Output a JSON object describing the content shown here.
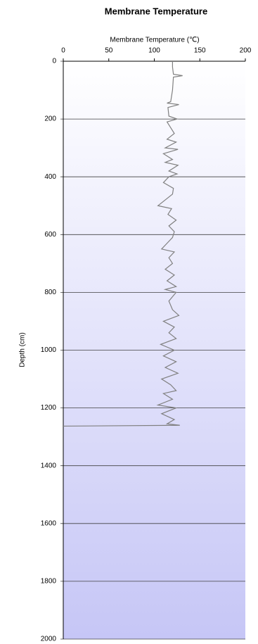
{
  "chart_data": {
    "type": "line",
    "title": "Membrane Temperature",
    "x_label": "Membrane Temperature (℃)",
    "y_label": "Depth (cm)",
    "xlim": [
      0,
      200
    ],
    "xticks": [
      0,
      50,
      100,
      150,
      200
    ],
    "ylim": [
      0,
      2000
    ],
    "yticks": [
      0,
      200,
      400,
      600,
      800,
      1000,
      1200,
      1400,
      1600,
      1800,
      2000
    ],
    "y_inverted": true,
    "grid": true,
    "color": "#808080",
    "x": [
      120,
      120,
      121,
      131,
      121,
      120,
      118,
      114,
      127,
      115,
      116,
      125,
      114,
      118,
      122,
      114,
      124,
      112,
      126,
      110,
      120,
      112,
      126,
      116,
      125,
      116,
      110,
      121,
      120,
      112,
      104,
      119,
      115,
      124,
      116,
      122,
      120,
      114,
      108,
      122,
      116,
      120,
      112,
      122,
      114,
      124,
      112,
      124,
      116,
      120,
      127,
      110,
      122,
      116,
      124,
      107,
      122,
      110,
      124,
      112,
      126,
      108,
      118,
      124,
      110,
      120,
      104,
      124,
      108,
      122,
      114,
      128,
      0
    ],
    "y": [
      0,
      20,
      45,
      50,
      55,
      100,
      140,
      145,
      150,
      160,
      190,
      200,
      210,
      230,
      250,
      270,
      280,
      300,
      305,
      320,
      340,
      350,
      360,
      380,
      390,
      400,
      420,
      440,
      460,
      480,
      500,
      510,
      530,
      550,
      570,
      590,
      610,
      630,
      650,
      660,
      680,
      700,
      720,
      740,
      760,
      780,
      790,
      800,
      830,
      860,
      880,
      900,
      920,
      940,
      960,
      980,
      1000,
      1020,
      1040,
      1060,
      1080,
      1100,
      1120,
      1140,
      1150,
      1170,
      1190,
      1200,
      1220,
      1240,
      1255,
      1260,
      1263
    ]
  }
}
